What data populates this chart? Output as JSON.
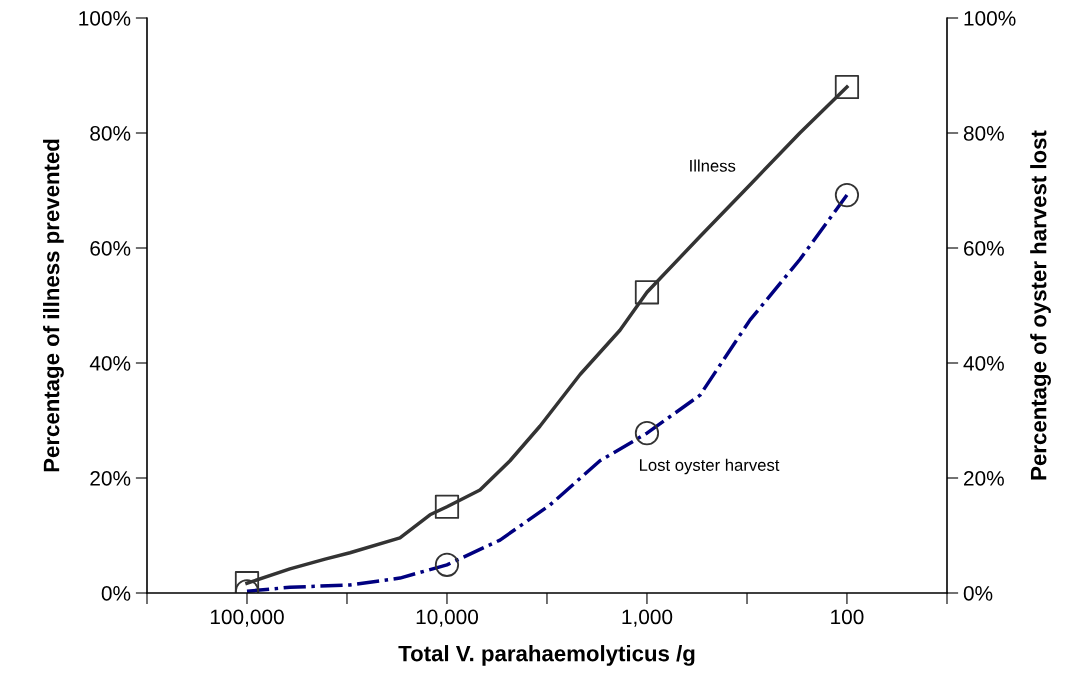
{
  "chart_data": {
    "type": "line",
    "xlabel": "Total V. parahaemolyticus /g",
    "ylabel": "Percentage of illness prevented",
    "y2label": "Percentage of oyster harvest lost",
    "log": "x",
    "xlim": [
      316228,
      31.6
    ],
    "xticks": [
      {
        "value": 316228,
        "label": null
      },
      {
        "value": 100000,
        "label": "100,000"
      },
      {
        "value": 31623,
        "label": null
      },
      {
        "value": 10000,
        "label": "10,000"
      },
      {
        "value": 3162,
        "label": null
      },
      {
        "value": 1000,
        "label": "1,000"
      },
      {
        "value": 316,
        "label": null
      },
      {
        "value": 100,
        "label": "100"
      },
      {
        "value": 31.6,
        "label": null
      }
    ],
    "ylim": [
      0,
      100
    ],
    "yticks": [
      {
        "value": 0,
        "label": "0%"
      },
      {
        "value": 20,
        "label": "20%"
      },
      {
        "value": 40,
        "label": "40%"
      },
      {
        "value": 60,
        "label": "60%"
      },
      {
        "value": 80,
        "label": "80%"
      },
      {
        "value": 100,
        "label": "100%"
      }
    ],
    "y2lim": [
      0,
      100
    ],
    "y2ticks": [
      {
        "value": 0,
        "label": "0%"
      },
      {
        "value": 20,
        "label": "20%"
      },
      {
        "value": 40,
        "label": "40%"
      },
      {
        "value": 60,
        "label": "60%"
      },
      {
        "value": 80,
        "label": "80%"
      },
      {
        "value": 100,
        "label": "100%"
      }
    ],
    "grid": false,
    "series": [
      {
        "name": "Illness",
        "color": "#333333",
        "line_style": "solid",
        "marker": "none",
        "x": [
          100000,
          61000,
          40700,
          30550,
          17180,
          12160,
          10000,
          6840,
          4840,
          3430,
          2160,
          1365,
          1000,
          543,
          305,
          172,
          100
        ],
        "values": [
          1.7,
          4.2,
          5.9,
          7.0,
          9.6,
          13.6,
          15,
          17.9,
          23,
          29,
          38,
          45.7,
          52.3,
          62,
          71,
          80,
          88
        ]
      },
      {
        "name": "Lost oyster harvest",
        "color": "#000080",
        "line_style": "dashdot",
        "marker": "none",
        "x": [
          100000,
          61000,
          30550,
          17180,
          10000,
          5430,
          3055,
          1718,
          1000,
          543,
          305,
          172,
          100
        ],
        "values": [
          0.3,
          1.0,
          1.4,
          2.6,
          4.9,
          9.2,
          15.3,
          23,
          27.8,
          34.4,
          47.5,
          58,
          69.2
        ]
      },
      {
        "type": "scatter",
        "color": "#333333",
        "marker": "square",
        "x": [
          100000,
          10000,
          1000,
          100
        ],
        "values": [
          1.7,
          15,
          52.3,
          88
        ]
      },
      {
        "type": "scatter",
        "color": "#333333",
        "marker": "circle",
        "x": [
          100000,
          10000,
          1000,
          100
        ],
        "values": [
          0.3,
          4.9,
          27.8,
          69.2
        ]
      }
    ]
  }
}
